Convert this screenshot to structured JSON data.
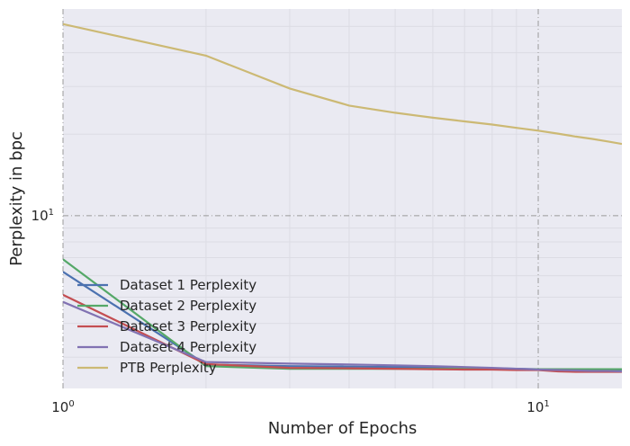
{
  "chart_data": {
    "type": "line",
    "xlabel": "Number of Epochs",
    "ylabel": "Perplexity in bpc",
    "x_scale": "log",
    "y_scale": "log",
    "xlim": [
      1,
      15
    ],
    "ylim": [
      2.3,
      58
    ],
    "grid": true,
    "legend_position": "lower-left",
    "x_ticks": [
      {
        "value": 1,
        "base": "10",
        "exp": "0"
      },
      {
        "value": 10,
        "base": "10",
        "exp": "1"
      }
    ],
    "y_ticks": [
      {
        "value": 10,
        "base": "10",
        "exp": "1"
      }
    ],
    "x": [
      1,
      2,
      3,
      4,
      5,
      6,
      7,
      8,
      9,
      10,
      11,
      12,
      13,
      14,
      15
    ],
    "series": [
      {
        "name": "Dataset 1 Perplexity",
        "color": "#4c72b0",
        "values": [
          6.2,
          2.82,
          2.78,
          2.77,
          2.76,
          2.75,
          2.74,
          2.73,
          2.72,
          2.71,
          2.7,
          2.7,
          2.69,
          2.69,
          2.68
        ]
      },
      {
        "name": "Dataset 2 Perplexity",
        "color": "#55a868",
        "values": [
          6.9,
          2.78,
          2.72,
          2.72,
          2.72,
          2.72,
          2.72,
          2.72,
          2.71,
          2.71,
          2.71,
          2.71,
          2.71,
          2.71,
          2.71
        ]
      },
      {
        "name": "Dataset 3 Perplexity",
        "color": "#c44e52",
        "values": [
          5.1,
          2.83,
          2.74,
          2.73,
          2.72,
          2.71,
          2.7,
          2.7,
          2.69,
          2.69,
          2.66,
          2.65,
          2.65,
          2.65,
          2.65
        ]
      },
      {
        "name": "Dataset 4 Perplexity",
        "color": "#8172b2",
        "values": [
          4.8,
          2.88,
          2.84,
          2.82,
          2.8,
          2.78,
          2.76,
          2.74,
          2.72,
          2.7,
          2.69,
          2.68,
          2.67,
          2.67,
          2.66
        ]
      },
      {
        "name": "PTB Perplexity",
        "color": "#ccb974",
        "values": [
          51,
          39,
          29.5,
          25.5,
          24.0,
          23.0,
          22.3,
          21.7,
          21.1,
          20.6,
          20.1,
          19.6,
          19.2,
          18.8,
          18.4
        ]
      }
    ]
  }
}
